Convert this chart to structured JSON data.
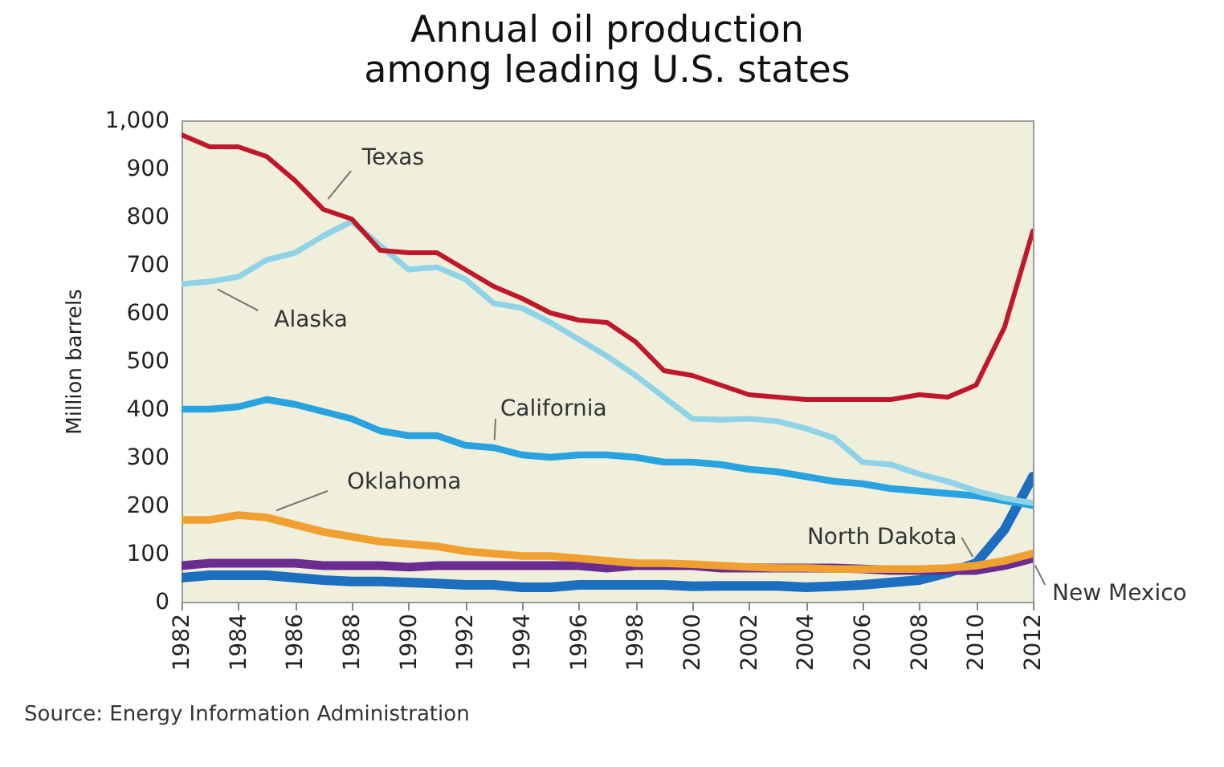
{
  "chart_data": {
    "type": "line",
    "title": "Annual oil production among leading U.S. states",
    "ylabel": "Million barrels",
    "x": [
      1982,
      1983,
      1984,
      1985,
      1986,
      1987,
      1988,
      1989,
      1990,
      1991,
      1992,
      1993,
      1994,
      1995,
      1996,
      1997,
      1998,
      1999,
      2000,
      2001,
      2002,
      2003,
      2004,
      2005,
      2006,
      2007,
      2008,
      2009,
      2010,
      2011,
      2012
    ],
    "series": [
      {
        "name": "Texas",
        "color": "#c0182a",
        "values": [
          970,
          945,
          945,
          925,
          875,
          815,
          795,
          730,
          725,
          725,
          690,
          655,
          630,
          600,
          585,
          580,
          540,
          480,
          470,
          450,
          430,
          425,
          420,
          420,
          420,
          420,
          430,
          425,
          450,
          570,
          770
        ]
      },
      {
        "name": "Alaska",
        "color": "#8fd3e8",
        "values": [
          660,
          665,
          675,
          710,
          725,
          760,
          790,
          740,
          690,
          695,
          670,
          620,
          610,
          580,
          545,
          510,
          470,
          425,
          380,
          378,
          380,
          375,
          360,
          340,
          290,
          285,
          265,
          250,
          230,
          215,
          205
        ]
      },
      {
        "name": "California",
        "color": "#29a3e0",
        "values": [
          400,
          400,
          405,
          420,
          410,
          395,
          380,
          355,
          345,
          345,
          325,
          320,
          305,
          300,
          305,
          305,
          300,
          290,
          290,
          285,
          275,
          270,
          260,
          250,
          245,
          235,
          230,
          225,
          220,
          210,
          200
        ]
      },
      {
        "name": "Oklahoma",
        "color": "#f0a030",
        "values": [
          170,
          170,
          180,
          175,
          160,
          145,
          135,
          125,
          120,
          115,
          105,
          100,
          95,
          95,
          90,
          85,
          80,
          80,
          78,
          75,
          72,
          70,
          70,
          68,
          68,
          68,
          68,
          70,
          75,
          85,
          100
        ]
      },
      {
        "name": "New Mexico",
        "color": "#6a2c91",
        "values": [
          75,
          80,
          80,
          80,
          80,
          75,
          75,
          75,
          72,
          75,
          75,
          75,
          75,
          75,
          75,
          70,
          75,
          75,
          75,
          70,
          70,
          70,
          70,
          70,
          68,
          65,
          65,
          65,
          65,
          75,
          90
        ]
      },
      {
        "name": "North Dakota",
        "color": "#1c6fbf",
        "values": [
          50,
          55,
          55,
          55,
          50,
          45,
          42,
          42,
          40,
          38,
          35,
          35,
          30,
          30,
          35,
          35,
          35,
          35,
          32,
          33,
          33,
          33,
          30,
          32,
          35,
          40,
          45,
          60,
          80,
          150,
          260
        ]
      }
    ],
    "xlim": [
      1982,
      2012
    ],
    "xticks": [
      1982,
      1984,
      1986,
      1988,
      1990,
      1992,
      1994,
      1996,
      1998,
      2000,
      2002,
      2004,
      2006,
      2008,
      2010,
      2012
    ],
    "ylim": [
      0,
      1000
    ],
    "yticks": [
      0,
      100,
      200,
      300,
      400,
      500,
      600,
      700,
      800,
      900,
      {
        "value": 1000,
        "label": "1,000"
      }
    ],
    "annotations": [
      "Source: Energy Information Administration"
    ],
    "grid": false,
    "legend": false,
    "marker": "none",
    "line_style": "solid"
  }
}
